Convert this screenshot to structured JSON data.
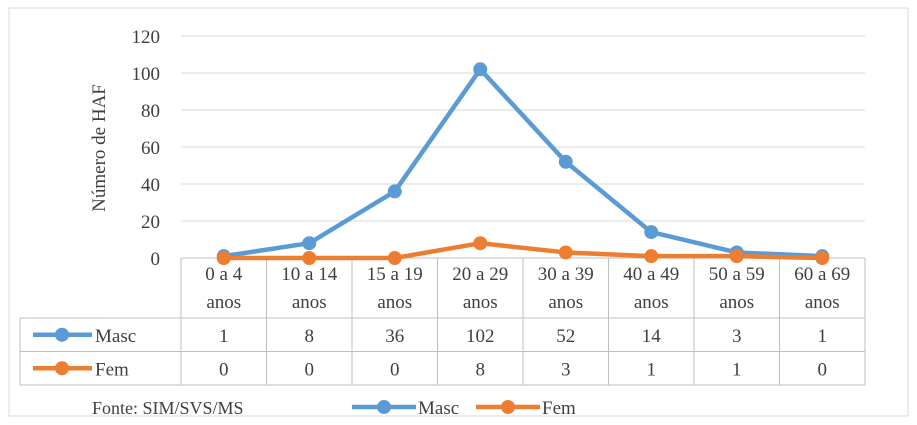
{
  "chart_data": {
    "type": "line",
    "ylabel": "Número de HAF",
    "ylim": [
      0,
      120
    ],
    "yticks": [
      0,
      20,
      40,
      60,
      80,
      100,
      120
    ],
    "grid": true,
    "categories": [
      [
        "0 a 4",
        "anos"
      ],
      [
        "10 a 14",
        "anos"
      ],
      [
        "15 a 19",
        "anos"
      ],
      [
        "20 a 29",
        "anos"
      ],
      [
        "30 a 39",
        "anos"
      ],
      [
        "40 a 49",
        "anos"
      ],
      [
        "50 a 59",
        "anos"
      ],
      [
        "60 a 69",
        "anos"
      ]
    ],
    "series": [
      {
        "name": "Masc",
        "color": "#5b9bd5",
        "values": [
          1,
          8,
          36,
          102,
          52,
          14,
          3,
          1
        ]
      },
      {
        "name": "Fem",
        "color": "#ed7d31",
        "values": [
          0,
          0,
          0,
          8,
          3,
          1,
          1,
          0
        ]
      }
    ],
    "data_table": true,
    "legend_position": "bottom",
    "source_note": "Fonte: SIM/SVS/MS"
  }
}
